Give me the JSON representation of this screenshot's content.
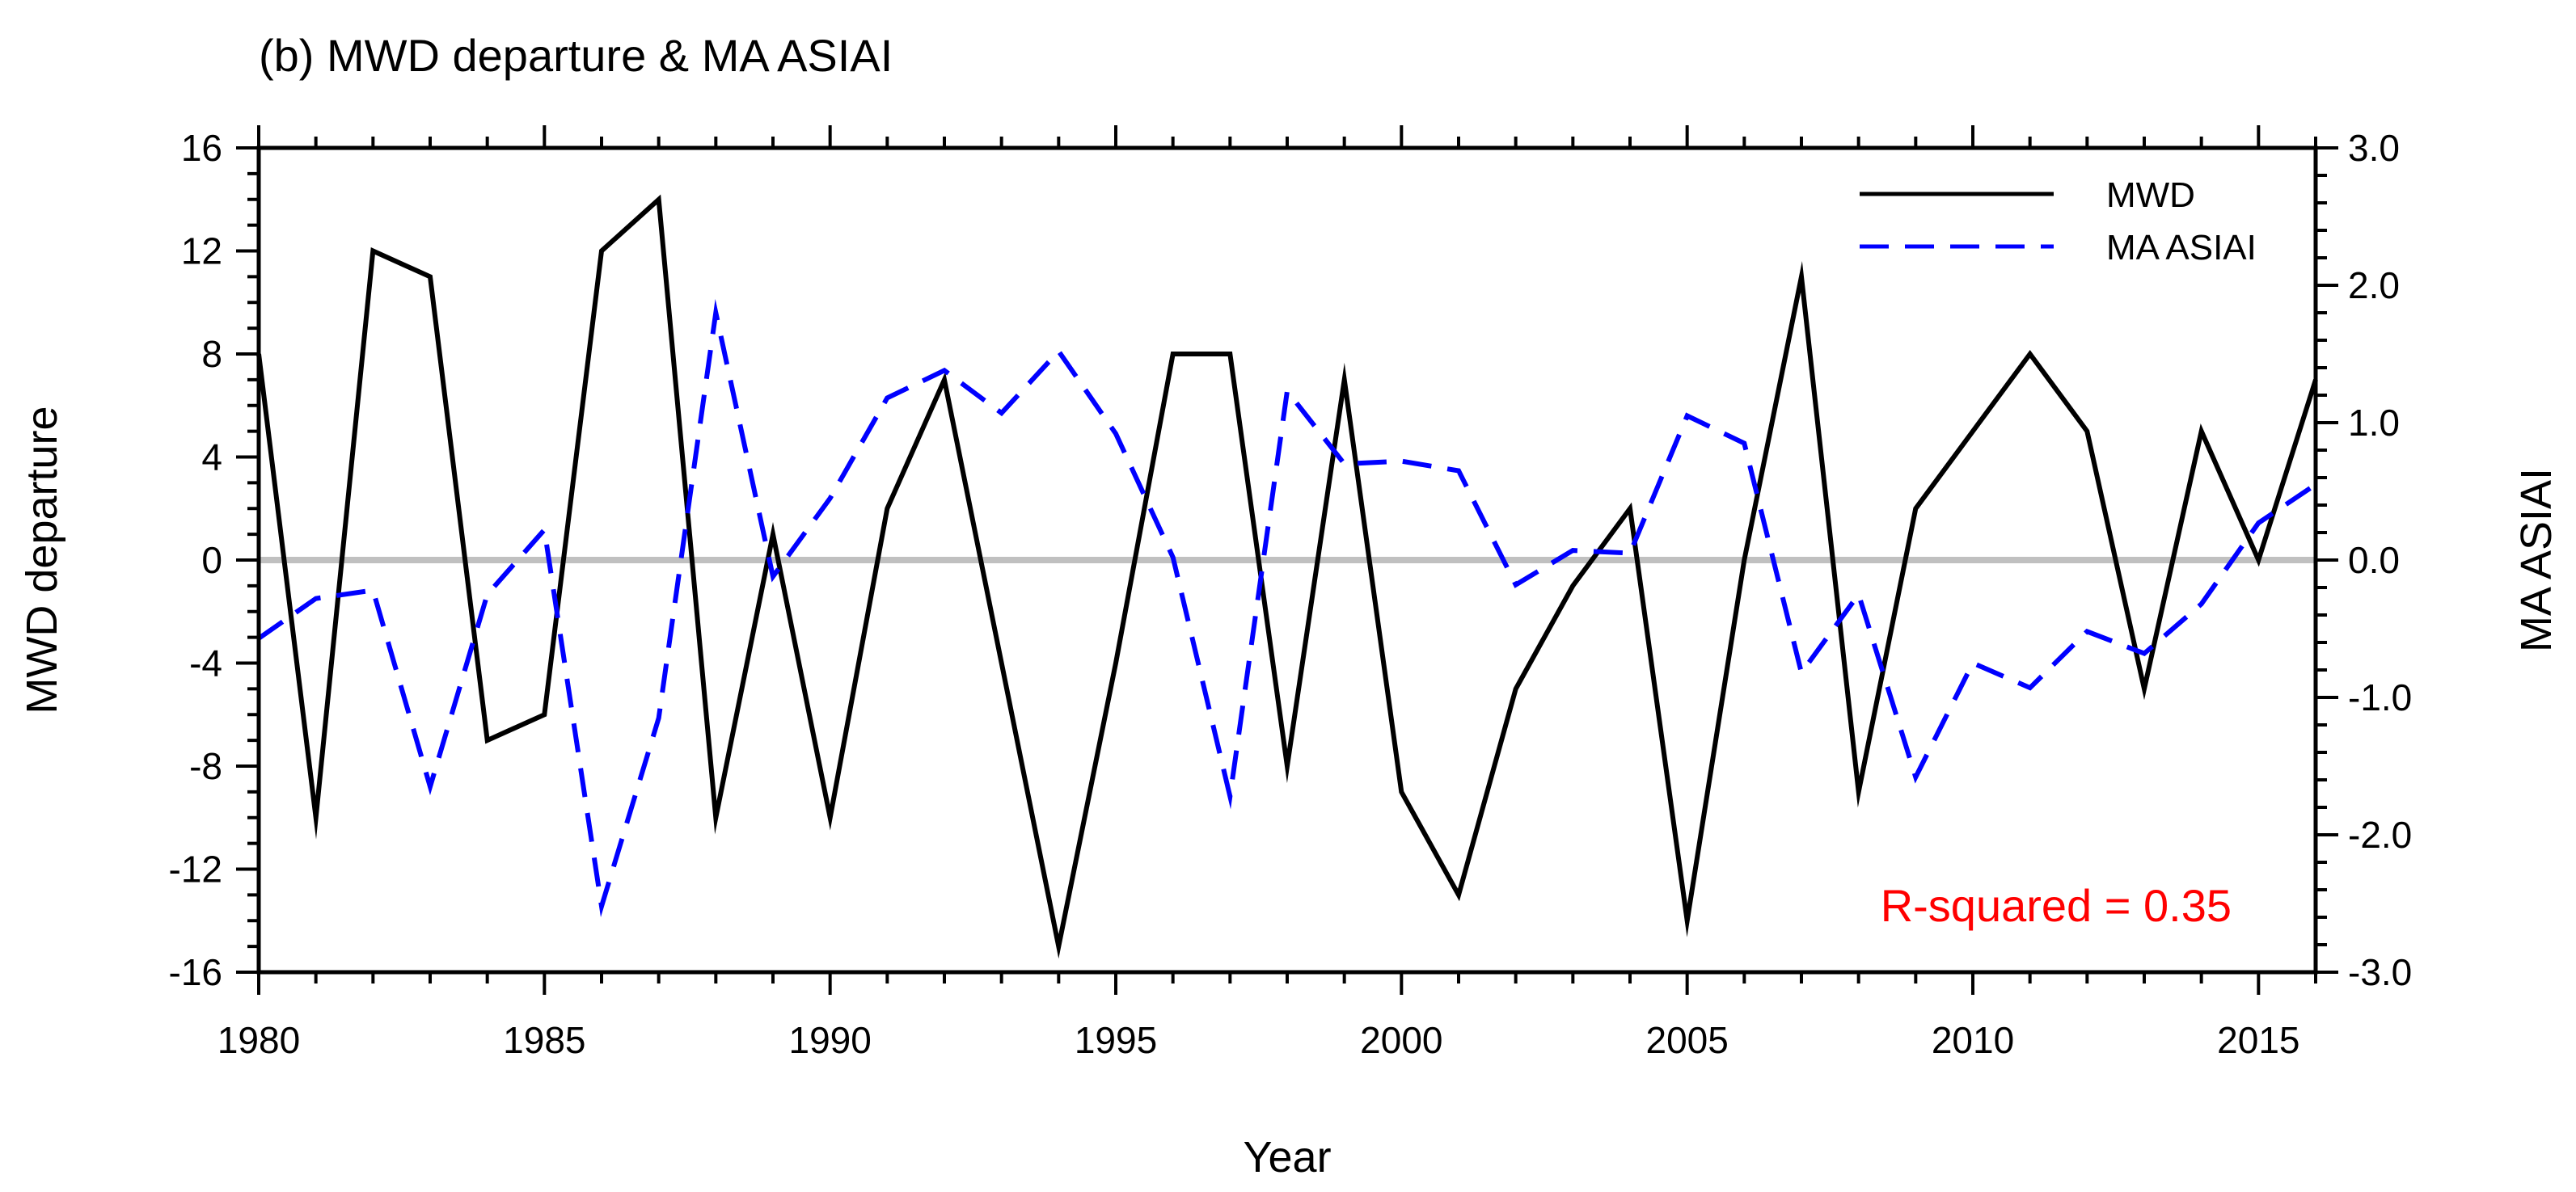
{
  "chart_data": {
    "type": "line",
    "title": "(b) MWD departure & MA ASIAI",
    "xlabel": "Year",
    "ylabel_left": "MWD departure",
    "ylabel_right": "MA ASIAI",
    "xlim": [
      1980,
      2016
    ],
    "ylim_left": [
      -16,
      16
    ],
    "ylim_right": [
      -3.0,
      3.0
    ],
    "x_ticks": [
      "1980",
      "1985",
      "1990",
      "1995",
      "2000",
      "2005",
      "2010",
      "2015"
    ],
    "y_ticks_left": [
      "-16",
      "-12",
      "-8",
      "-4",
      "0",
      "4",
      "8",
      "12",
      "16"
    ],
    "y_ticks_right": [
      "-3.0",
      "-2.0",
      "-1.0",
      "0.0",
      "1.0",
      "2.0",
      "3.0"
    ],
    "x": [
      1980,
      1981,
      1982,
      1983,
      1984,
      1985,
      1986,
      1987,
      1988,
      1989,
      1990,
      1991,
      1992,
      1993,
      1994,
      1995,
      1996,
      1997,
      1998,
      1999,
      2000,
      2001,
      2002,
      2003,
      2004,
      2005,
      2006,
      2007,
      2008,
      2009,
      2010,
      2011,
      2012,
      2013,
      2014,
      2015,
      2016
    ],
    "series": [
      {
        "name": "MWD",
        "axis": "left",
        "style": "solid",
        "color": "#000000",
        "values": [
          8,
          -10,
          12,
          11,
          -7,
          -6,
          12,
          14,
          -10,
          1,
          -10,
          2,
          7,
          -4,
          -15,
          -4,
          8,
          8,
          -8,
          7,
          -9,
          -13,
          -5,
          -1,
          2,
          -14,
          0,
          11,
          -9,
          2,
          5,
          8,
          5,
          -5,
          5,
          0,
          7
        ]
      },
      {
        "name": "MA ASIAI",
        "axis": "right",
        "style": "dashed",
        "color": "#0000ff",
        "values": [
          -0.57,
          -0.28,
          -0.22,
          -1.65,
          -0.25,
          0.22,
          -2.52,
          -1.15,
          1.8,
          -0.12,
          0.45,
          1.18,
          1.38,
          1.07,
          1.52,
          0.92,
          0.02,
          -1.72,
          1.23,
          0.7,
          0.72,
          0.65,
          -0.18,
          0.07,
          0.05,
          1.05,
          0.85,
          -0.82,
          -0.25,
          -1.58,
          -0.75,
          -0.93,
          -0.52,
          -0.68,
          -0.32,
          0.27,
          0.55
        ]
      }
    ],
    "reference_line": {
      "axis": "left",
      "value": 0,
      "color": "#c0c0c0"
    },
    "legend": {
      "placement": "top-right",
      "entries": [
        "MWD",
        "MA ASIAI"
      ]
    },
    "annotation": {
      "text": "R-squared = 0.35",
      "color": "#ff0000",
      "placement": "bottom-right"
    },
    "grid": false
  }
}
